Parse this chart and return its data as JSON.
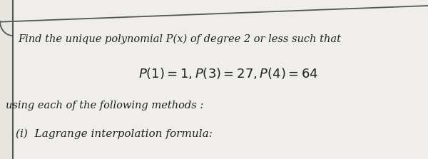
{
  "bg_color": "#e8e6e0",
  "content_bg": "#f0eeea",
  "border_color": "#555555",
  "text_color": "#222222",
  "line1": "Find the unique polynomial P(x) of degree 2 or less such that",
  "line2": "$P(1) = 1, P(3) = 27, P(4) = 64$",
  "line3": "using each of the following methods :",
  "line4": "(i)  Lagrange interpolation formula:",
  "fig_width": 6.0,
  "fig_height": 2.23,
  "dpi": 100
}
